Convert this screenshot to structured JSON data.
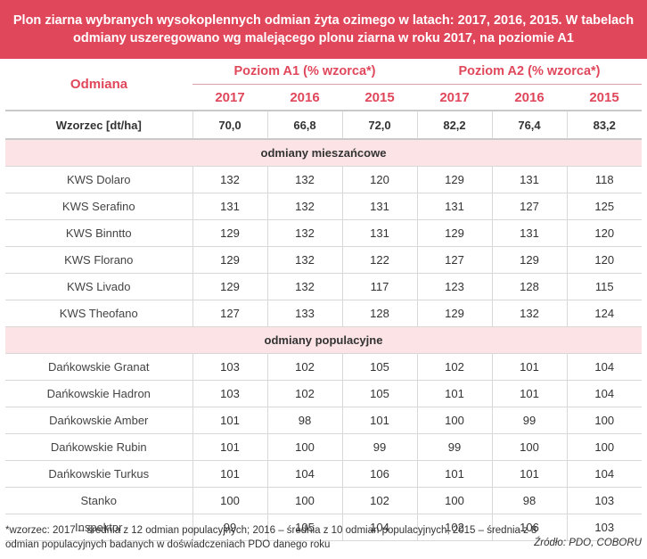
{
  "title": {
    "line1": "Plon ziarna wybranych wysokoplennych odmian żyta ozimego w latach: 2017, 2016, 2015. W tabelach",
    "line2": "odmiany uszeregowano wg malejącego plonu ziarna w roku 2017, na poziomie A1"
  },
  "header": {
    "odmiana": "Odmiana",
    "group_a1": "Poziom A1 (% wzorca*)",
    "group_a2": "Poziom A2 (% wzorca*)",
    "years": [
      "2017",
      "2016",
      "2015",
      "2017",
      "2016",
      "2015"
    ]
  },
  "wzorzec": {
    "label": "Wzorzec [dt/ha]",
    "values": [
      "70,0",
      "66,8",
      "72,0",
      "82,2",
      "76,4",
      "83,2"
    ]
  },
  "sections": [
    {
      "title": "odmiany mieszańcowe",
      "rows": [
        {
          "name": "KWS Dolaro",
          "values": [
            "132",
            "132",
            "120",
            "129",
            "131",
            "118"
          ]
        },
        {
          "name": "KWS Serafino",
          "values": [
            "131",
            "132",
            "131",
            "131",
            "127",
            "125"
          ]
        },
        {
          "name": "KWS Binntto",
          "values": [
            "129",
            "132",
            "131",
            "129",
            "131",
            "120"
          ]
        },
        {
          "name": "KWS Florano",
          "values": [
            "129",
            "132",
            "122",
            "127",
            "129",
            "120"
          ]
        },
        {
          "name": "KWS Livado",
          "values": [
            "129",
            "132",
            "117",
            "123",
            "128",
            "115"
          ]
        },
        {
          "name": "KWS Theofano",
          "values": [
            "127",
            "133",
            "128",
            "129",
            "132",
            "124"
          ]
        }
      ]
    },
    {
      "title": "odmiany populacyjne",
      "rows": [
        {
          "name": "Dańkowskie Granat",
          "values": [
            "103",
            "102",
            "105",
            "102",
            "101",
            "104"
          ]
        },
        {
          "name": "Dańkowskie Hadron",
          "values": [
            "103",
            "102",
            "105",
            "101",
            "101",
            "104"
          ]
        },
        {
          "name": "Dańkowskie Amber",
          "values": [
            "101",
            "98",
            "101",
            "100",
            "99",
            "100"
          ]
        },
        {
          "name": "Dańkowskie Rubin",
          "values": [
            "101",
            "100",
            "99",
            "99",
            "100",
            "100"
          ]
        },
        {
          "name": "Dańkowskie Turkus",
          "values": [
            "101",
            "104",
            "106",
            "101",
            "101",
            "104"
          ]
        },
        {
          "name": "Stanko",
          "values": [
            "100",
            "100",
            "102",
            "100",
            "98",
            "103"
          ]
        },
        {
          "name": "Inspektor",
          "values": [
            "99",
            "105",
            "104",
            "102",
            "106",
            "103"
          ]
        }
      ]
    }
  ],
  "footnote": {
    "line1": "*wzorzec: 2017 – średnia z 12 odmian populacyjnych; 2016 – średnia z 10 odmian populacyjnych; 2015 – średnia z 8",
    "line2": "odmian populacyjnych badanych w doświadczeniach PDO danego roku"
  },
  "source": "Źródło: PDO, COBORU",
  "colors": {
    "accent": "#e0475b",
    "section_bg": "#fbe3e6"
  }
}
